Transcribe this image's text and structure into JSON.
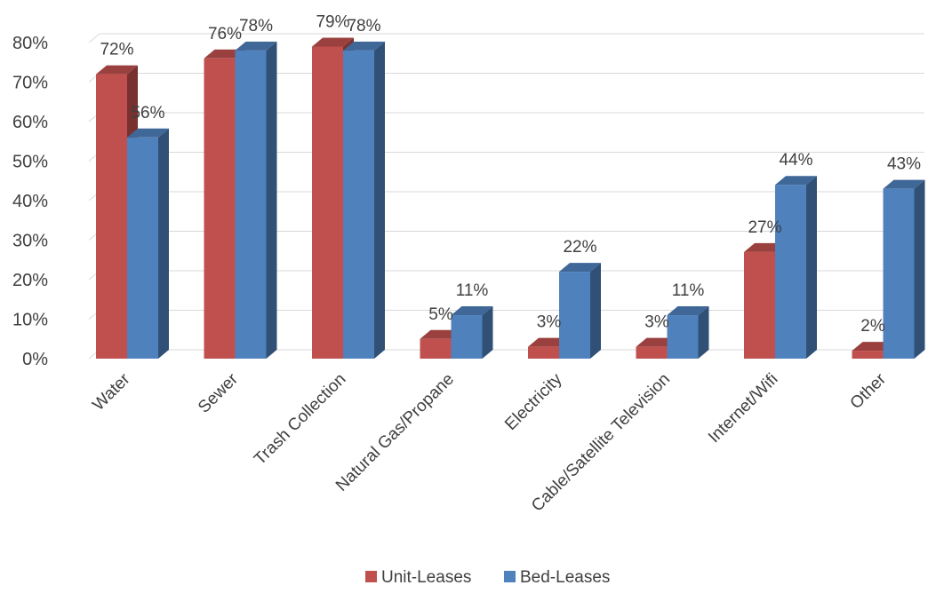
{
  "chart_data": {
    "type": "bar",
    "style": "3d-clustered-column",
    "categories": [
      "Water",
      "Sewer",
      "Trash Collection",
      "Natural Gas/Propane",
      "Electricity",
      "Cable/Satellite Television",
      "Internet/Wifi",
      "Other"
    ],
    "series": [
      {
        "name": "Unit-Leases",
        "color": "#c0504d",
        "values": [
          72,
          76,
          79,
          5,
          3,
          3,
          27,
          2
        ]
      },
      {
        "name": "Bed-Leases",
        "color": "#4f81bd",
        "values": [
          56,
          78,
          78,
          11,
          22,
          11,
          44,
          43
        ]
      }
    ],
    "data_labels": {
      "Unit-Leases": [
        "72%",
        "76%",
        "79%",
        "5%",
        "3%",
        "3%",
        "27%",
        "2%"
      ],
      "Bed-Leases": [
        "56%",
        "78%",
        "78%",
        "11%",
        "22%",
        "11%",
        "44%",
        "43%"
      ]
    },
    "y_ticks": [
      "0%",
      "10%",
      "20%",
      "30%",
      "40%",
      "50%",
      "60%",
      "70%",
      "80%"
    ],
    "ylim": [
      0,
      80
    ],
    "title": "",
    "xlabel": "",
    "ylabel": "",
    "grid": true,
    "legend": "bottom-center"
  }
}
